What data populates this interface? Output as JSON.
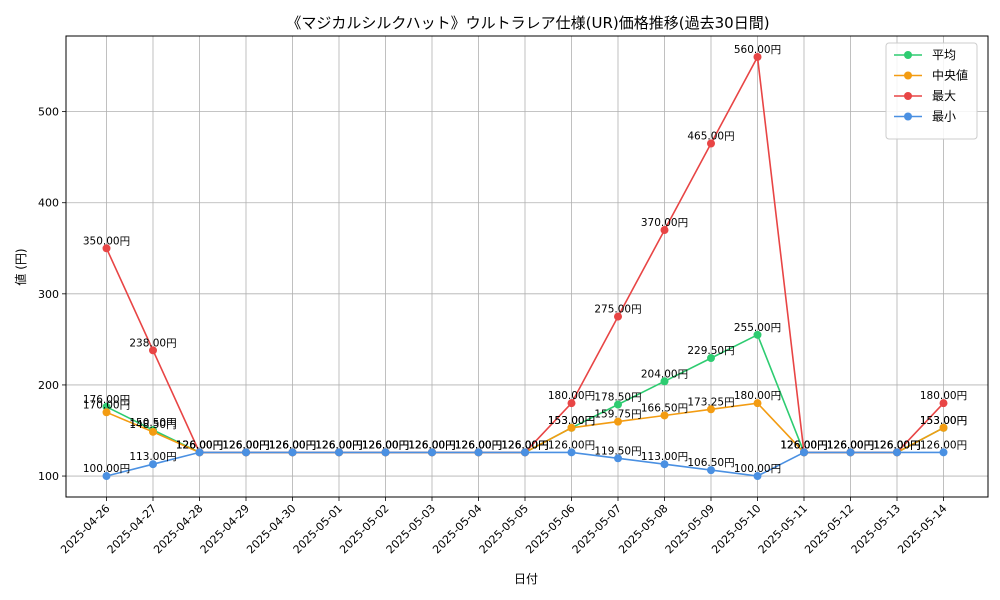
{
  "chart_data": {
    "type": "line",
    "title": "《マジカルシルクハット》ウルトラレア仕様(UR)価格推移(過去30日間)",
    "xlabel": "日付",
    "ylabel": "値 (円)",
    "x": [
      "2025-04-26",
      "2025-04-27",
      "2025-04-28",
      "2025-04-29",
      "2025-04-30",
      "2025-05-01",
      "2025-05-02",
      "2025-05-03",
      "2025-05-04",
      "2025-05-05",
      "2025-05-06",
      "2025-05-07",
      "2025-05-08",
      "2025-05-09",
      "2025-05-10",
      "2025-05-11",
      "2025-05-12",
      "2025-05-13",
      "2025-05-14"
    ],
    "yticks": [
      100,
      200,
      300,
      400,
      500
    ],
    "ylim": [
      77,
      583
    ],
    "grid": true,
    "legend_position": "top-right",
    "series": [
      {
        "name": "平均",
        "color": "#2ecc71",
        "values": [
          176.0,
          150.5,
          126.0,
          126.0,
          126.0,
          126.0,
          126.0,
          126.0,
          126.0,
          126.0,
          153.0,
          178.5,
          204.0,
          229.5,
          255.0,
          126.0,
          126.0,
          126.0,
          153.0
        ],
        "labels": [
          "176.00円",
          "150.50円",
          "126.00円",
          "126.00円",
          "126.00円",
          "126.00円",
          "126.00円",
          "126.00円",
          "126.00円",
          "126.00円",
          "153.00円",
          "178.50円",
          "204.00円",
          "229.50円",
          "255.00円",
          "126.00円",
          "126.00円",
          "126.00円",
          "153.00円"
        ]
      },
      {
        "name": "中央値",
        "color": "#f39c12",
        "values": [
          170.0,
          148.5,
          126.0,
          126.0,
          126.0,
          126.0,
          126.0,
          126.0,
          126.0,
          126.0,
          153.0,
          159.75,
          166.5,
          173.25,
          180.0,
          126.0,
          126.0,
          126.0,
          153.0
        ],
        "labels": [
          "170.00円",
          "148.50円",
          "126.00円",
          "126.00円",
          "126.00円",
          "126.00円",
          "126.00円",
          "126.00円",
          "126.00円",
          "126.00円",
          "153.00円",
          "159.75円",
          "166.50円",
          "173.25円",
          "180.00円",
          "126.00円",
          "126.00円",
          "126.00円",
          "153.00円"
        ]
      },
      {
        "name": "最大",
        "color": "#e84545",
        "values": [
          350.0,
          238.0,
          126.0,
          126.0,
          126.0,
          126.0,
          126.0,
          126.0,
          126.0,
          126.0,
          180.0,
          275.0,
          370.0,
          465.0,
          560.0,
          126.0,
          126.0,
          126.0,
          180.0
        ],
        "labels": [
          "350.00円",
          "238.00円",
          "126.00円",
          "126.00円",
          "126.00円",
          "126.00円",
          "126.00円",
          "126.00円",
          "126.00円",
          "126.00円",
          "180.00円",
          "275.00円",
          "370.00円",
          "465.00円",
          "560.00円",
          "126.00円",
          "126.00円",
          "126.00円",
          "180.00円"
        ]
      },
      {
        "name": "最小",
        "color": "#4a90e2",
        "values": [
          100.0,
          113.0,
          126.0,
          126.0,
          126.0,
          126.0,
          126.0,
          126.0,
          126.0,
          126.0,
          126.0,
          119.5,
          113.0,
          106.5,
          100.0,
          126.0,
          126.0,
          126.0,
          126.0
        ],
        "labels": [
          "100.00円",
          "113.00円",
          "126.00円",
          "126.00円",
          "126.00円",
          "126.00円",
          "126.00円",
          "126.00円",
          "126.00円",
          "126.00円",
          "126.00円",
          "119.50円",
          "113.00円",
          "106.50円",
          "100.00円",
          "126.00円",
          "126.00円",
          "126.00円",
          "126.00円"
        ]
      }
    ]
  }
}
